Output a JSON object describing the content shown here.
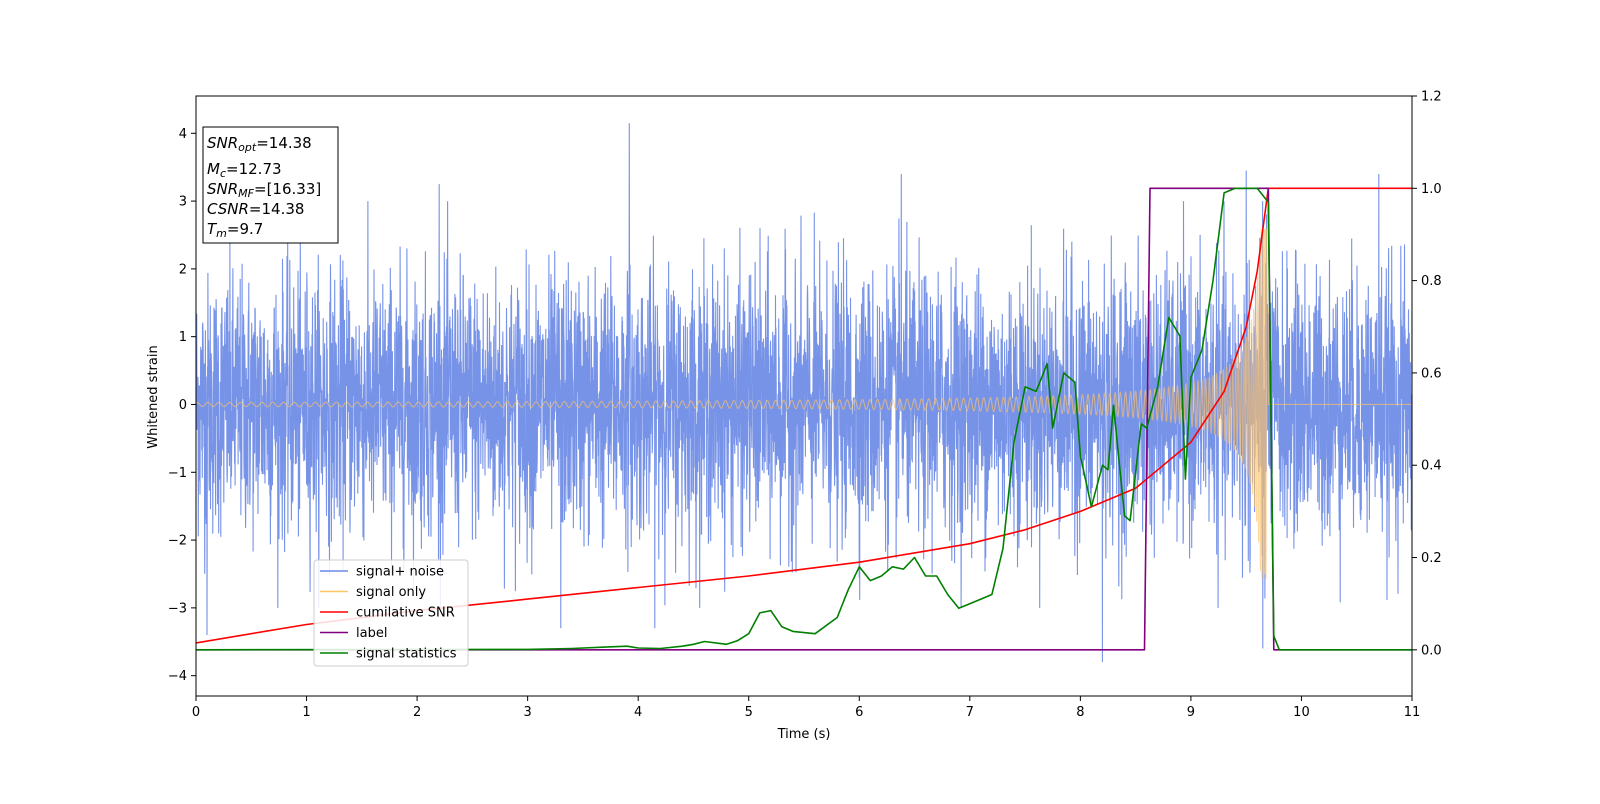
{
  "chart_data": {
    "type": "line",
    "xlabel": "Time (s)",
    "ylabel": "Whitened strain",
    "xlim": [
      0,
      11
    ],
    "ylim_left": [
      -4.3,
      4.55
    ],
    "ylim_right": [
      -0.1,
      1.2
    ],
    "x_ticks": [
      0,
      1,
      2,
      3,
      4,
      5,
      6,
      7,
      8,
      9,
      10,
      11
    ],
    "y_ticks_left": [
      -4,
      -3,
      -2,
      -1,
      0,
      1,
      2,
      3,
      4
    ],
    "y_ticks_right": [
      0.0,
      0.2,
      0.4,
      0.6,
      0.8,
      1.0,
      1.2
    ],
    "y_tick_labels_left": [
      "−4",
      "−3",
      "−2",
      "−1",
      "0",
      "1",
      "2",
      "3",
      "4"
    ],
    "y_tick_labels_right": [
      "0.0",
      "0.2",
      "0.4",
      "0.6",
      "0.8",
      "1.0",
      "1.2"
    ],
    "legend_position": "lower-left",
    "legend": [
      {
        "name": "signal+ noise",
        "color": "#6b8ae6"
      },
      {
        "name": "signal only",
        "color": "#ffc266"
      },
      {
        "name": "cumilative SNR",
        "color": "#ff0000"
      },
      {
        "name": "label",
        "color": "#800080"
      },
      {
        "name": "signal statistics",
        "color": "#008000"
      }
    ],
    "annotation": {
      "snr_opt": {
        "sym": "SNR",
        "sub": "opt",
        "value": "=14.38"
      },
      "mc": {
        "sym": "M",
        "sub": "c",
        "value": "=12.73"
      },
      "snr_mf": {
        "sym": "SNR",
        "sub": "MF",
        "value": "=[16.33]"
      },
      "csnr": {
        "sym": "CSNR",
        "sub": "",
        "value": "=14.38"
      },
      "tm": {
        "sym": "T",
        "sub": "m",
        "value": "=9.7"
      }
    },
    "series": [
      {
        "name": "signal+ noise",
        "axis": "left",
        "color": "#6b8ae6",
        "description_values": {
          "noise_std": 1.0,
          "x_range": [
            0,
            11
          ]
        },
        "spikes": [
          {
            "x": 3.92,
            "y": 4.15
          },
          {
            "x": 9.5,
            "y": 3.45
          },
          {
            "x": 10.7,
            "y": 3.4
          },
          {
            "x": 2.2,
            "y": 3.25
          },
          {
            "x": 6.38,
            "y": 3.4
          },
          {
            "x": 8.2,
            "y": -3.8
          },
          {
            "x": 0.1,
            "y": -3.4
          },
          {
            "x": 3.3,
            "y": -3.3
          },
          {
            "x": 4.15,
            "y": -3.3
          },
          {
            "x": 9.65,
            "y": -3.6
          }
        ]
      },
      {
        "name": "signal only",
        "axis": "left",
        "color": "#ffc266",
        "chirp": {
          "t_merge": 9.7,
          "base_amp": 0.03,
          "peak_amp": 2.6,
          "end_y": 0
        }
      },
      {
        "name": "cumilative SNR",
        "axis": "right",
        "color": "#ff0000",
        "x": [
          0,
          1,
          2,
          3,
          4,
          5,
          6,
          7,
          7.5,
          8,
          8.5,
          9,
          9.3,
          9.5,
          9.6,
          9.7,
          11
        ],
        "values": [
          0.015,
          0.055,
          0.085,
          0.11,
          0.135,
          0.16,
          0.19,
          0.23,
          0.26,
          0.3,
          0.35,
          0.45,
          0.56,
          0.7,
          0.82,
          1.0,
          1.0
        ]
      },
      {
        "name": "label",
        "axis": "right",
        "color": "#800080",
        "x": [
          0,
          8.58,
          8.63,
          9.7,
          9.75,
          11
        ],
        "values": [
          0.0,
          0.0,
          1.0,
          1.0,
          0.0,
          0.0
        ]
      },
      {
        "name": "signal statistics",
        "axis": "right",
        "color": "#008000",
        "x": [
          0,
          3.0,
          3.4,
          3.7,
          3.9,
          4.0,
          4.2,
          4.4,
          4.5,
          4.6,
          4.8,
          4.9,
          5.0,
          5.1,
          5.2,
          5.3,
          5.4,
          5.6,
          5.8,
          5.9,
          6.0,
          6.1,
          6.2,
          6.3,
          6.4,
          6.5,
          6.6,
          6.7,
          6.8,
          6.9,
          7.0,
          7.1,
          7.2,
          7.3,
          7.4,
          7.5,
          7.6,
          7.7,
          7.75,
          7.85,
          7.95,
          8.0,
          8.1,
          8.2,
          8.25,
          8.3,
          8.4,
          8.45,
          8.55,
          8.6,
          8.7,
          8.8,
          8.9,
          8.95,
          9.0,
          9.1,
          9.2,
          9.3,
          9.4,
          9.5,
          9.6,
          9.7,
          9.75,
          9.8,
          10.0,
          11
        ],
        "values": [
          0.0,
          0.001,
          0.003,
          0.006,
          0.008,
          0.004,
          0.003,
          0.008,
          0.012,
          0.018,
          0.012,
          0.02,
          0.035,
          0.08,
          0.085,
          0.05,
          0.04,
          0.035,
          0.07,
          0.13,
          0.18,
          0.15,
          0.16,
          0.18,
          0.175,
          0.2,
          0.16,
          0.16,
          0.12,
          0.09,
          0.1,
          0.11,
          0.12,
          0.22,
          0.45,
          0.57,
          0.56,
          0.62,
          0.48,
          0.6,
          0.58,
          0.42,
          0.31,
          0.4,
          0.39,
          0.53,
          0.29,
          0.28,
          0.49,
          0.48,
          0.57,
          0.72,
          0.68,
          0.37,
          0.59,
          0.65,
          0.8,
          0.99,
          1.0,
          1.0,
          1.0,
          0.97,
          0.03,
          0.0,
          0.0,
          0.0
        ]
      }
    ]
  }
}
